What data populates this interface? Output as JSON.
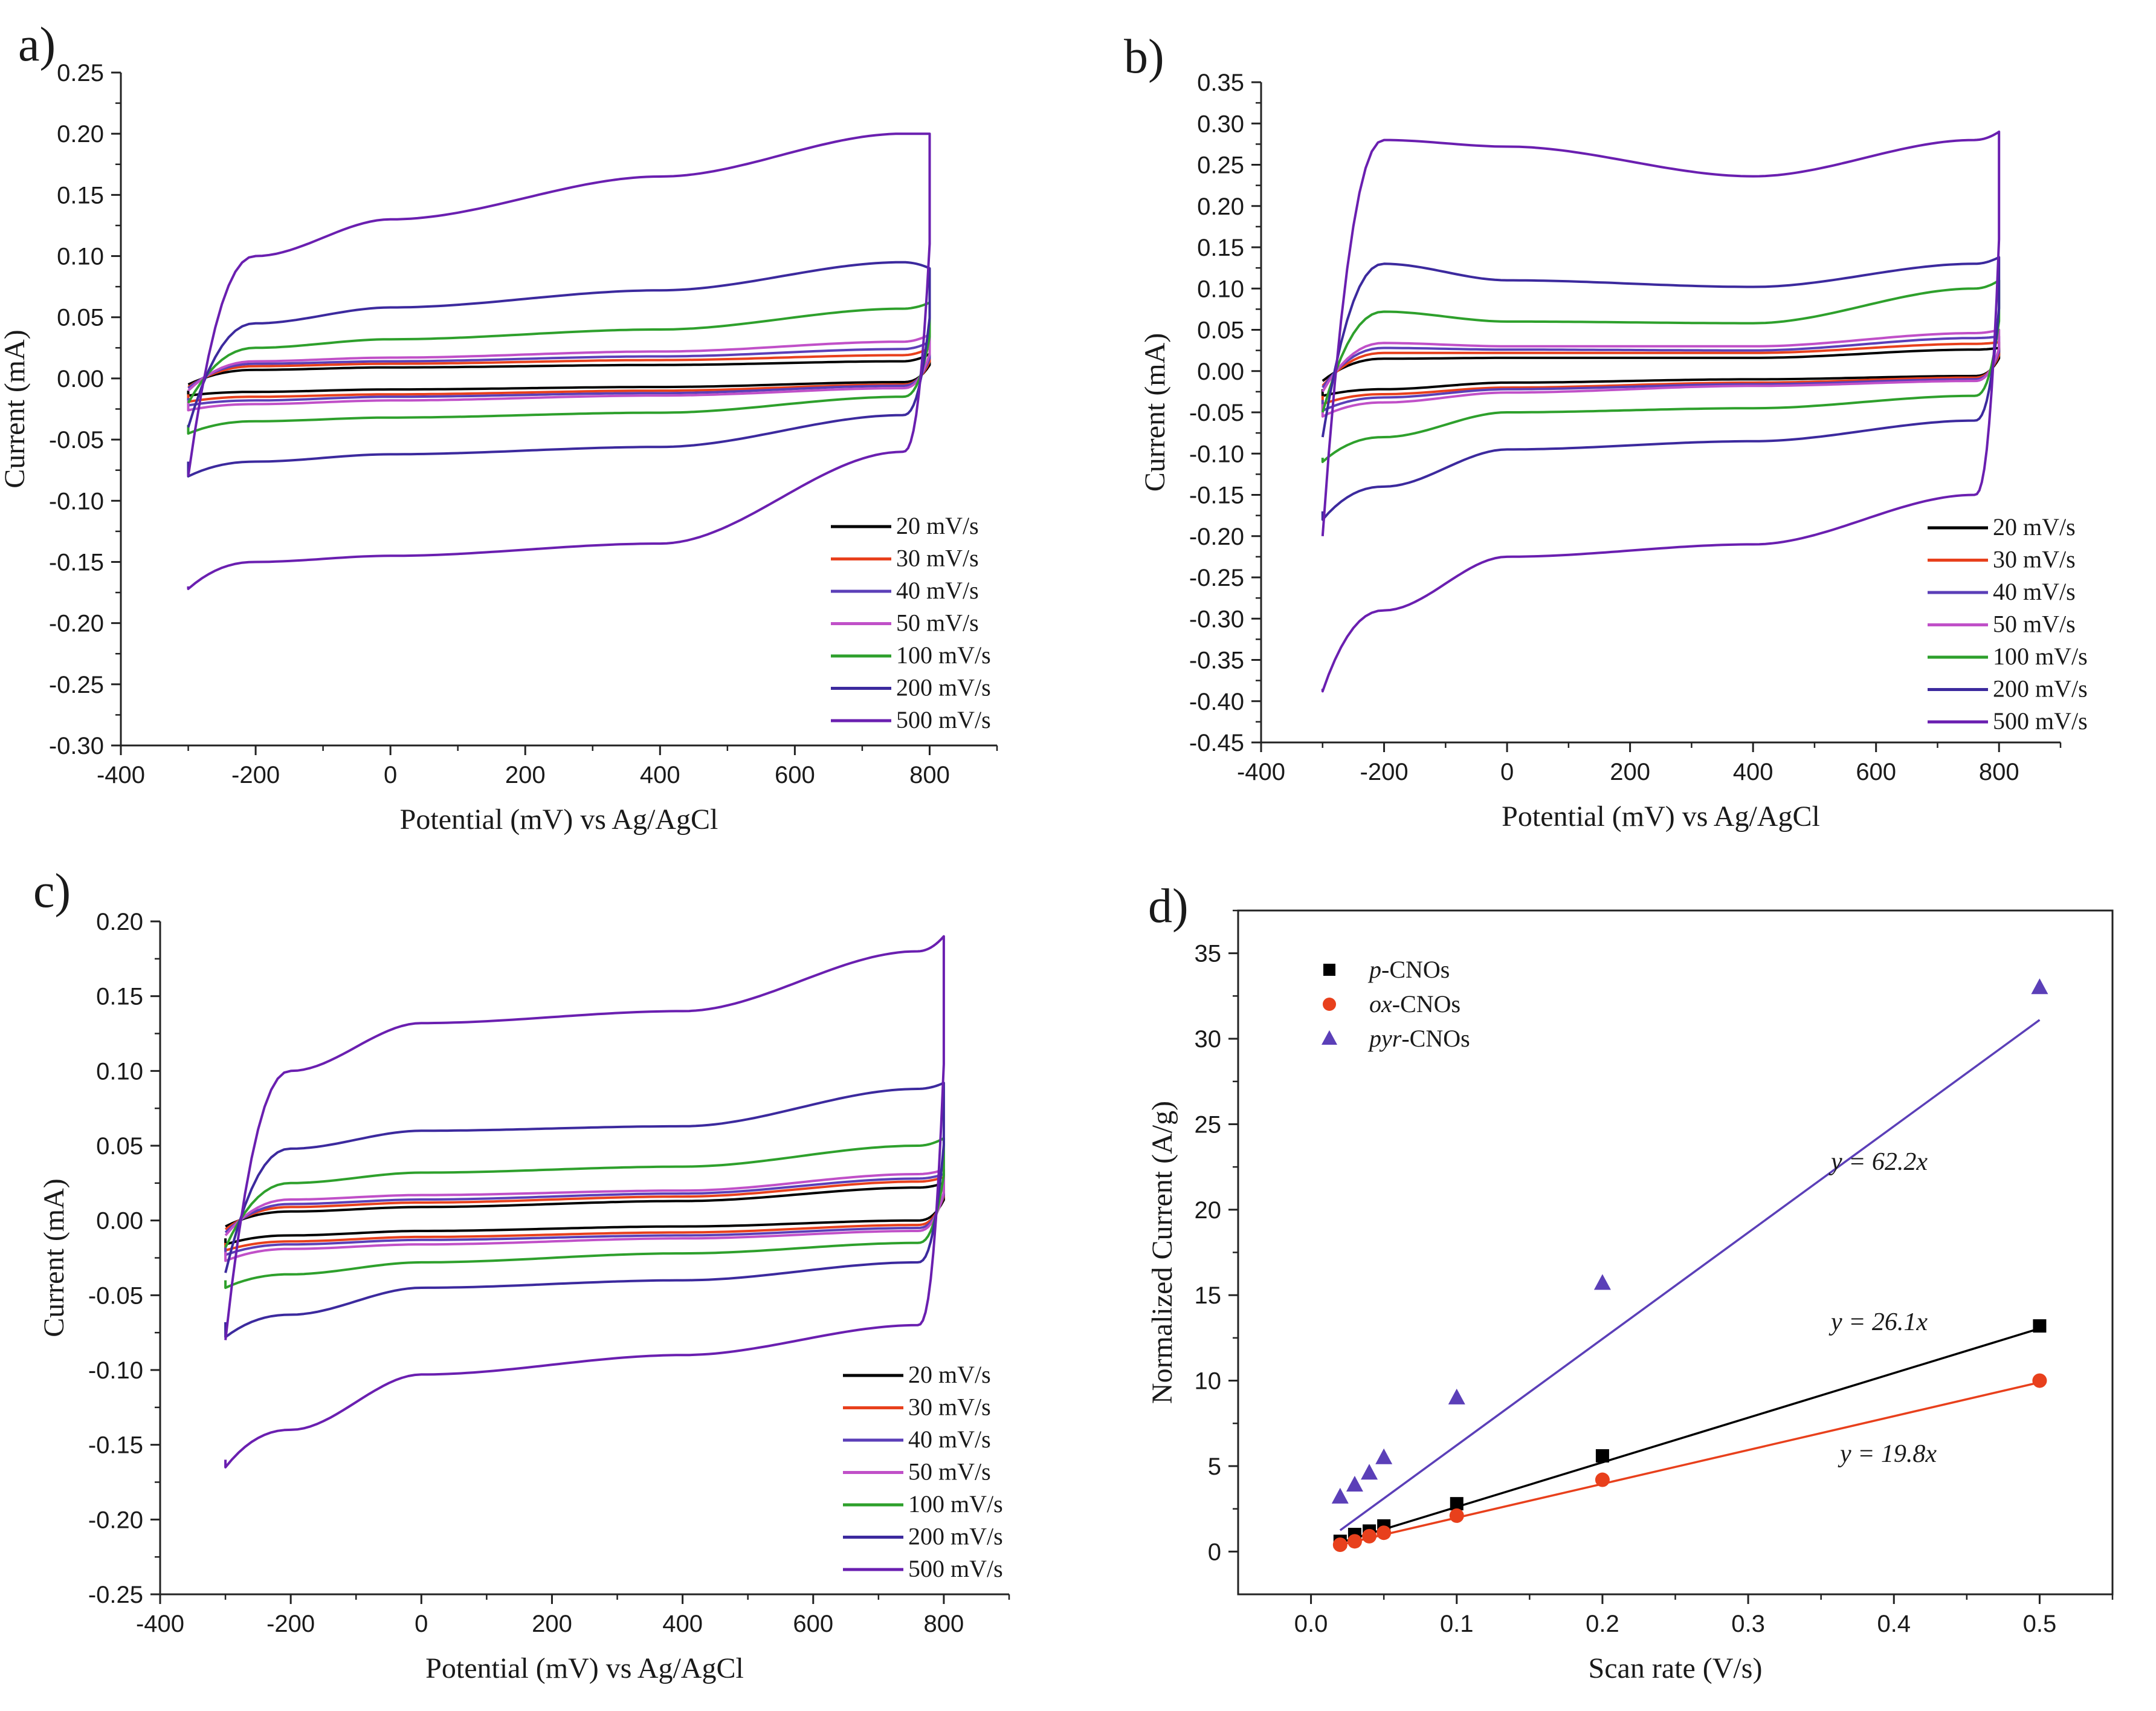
{
  "chart_data": [
    {
      "panel": "a)",
      "type": "line",
      "xlabel": "Potential (mV) vs Ag/AgCl",
      "ylabel": "Current (mA)",
      "xlim": [
        -400,
        900
      ],
      "ylim": [
        -0.3,
        0.25
      ],
      "xticks": [
        -400,
        -200,
        0,
        200,
        400,
        600,
        800
      ],
      "yticks": [
        -0.3,
        -0.25,
        -0.2,
        -0.15,
        -0.1,
        -0.05,
        0.0,
        0.05,
        0.1,
        0.15,
        0.2,
        0.25
      ],
      "legend_position": "bottom-right",
      "series": [
        {
          "name": "20 mV/s",
          "color": "#000000",
          "cv": {
            "t": [
              -0.005,
              0.007,
              0.009,
              0.011,
              0.014
            ],
            "b": [
              -0.014,
              -0.011,
              -0.009,
              -0.007,
              -0.003
            ],
            "s0": -0.01,
            "s1": 0.02
          }
        },
        {
          "name": "30 mV/s",
          "color": "#e8401c",
          "cv": {
            "t": [
              -0.007,
              0.01,
              0.012,
              0.015,
              0.019
            ],
            "b": [
              -0.019,
              -0.015,
              -0.013,
              -0.01,
              -0.005
            ],
            "s0": -0.013,
            "s1": 0.025
          }
        },
        {
          "name": "40 mV/s",
          "color": "#5b3fb8",
          "cv": {
            "t": [
              -0.008,
              0.012,
              0.014,
              0.018,
              0.024
            ],
            "b": [
              -0.022,
              -0.018,
              -0.015,
              -0.012,
              -0.006
            ],
            "s0": -0.016,
            "s1": 0.03
          }
        },
        {
          "name": "50 mV/s",
          "color": "#c050c8",
          "cv": {
            "t": [
              -0.01,
              0.014,
              0.017,
              0.022,
              0.03
            ],
            "b": [
              -0.026,
              -0.021,
              -0.018,
              -0.014,
              -0.008
            ],
            "s0": -0.018,
            "s1": 0.036
          }
        },
        {
          "name": "100 mV/s",
          "color": "#2ea02c",
          "cv": {
            "t": [
              -0.02,
              0.025,
              0.032,
              0.04,
              0.057
            ],
            "b": [
              -0.045,
              -0.035,
              -0.032,
              -0.028,
              -0.015
            ],
            "s0": -0.038,
            "s1": 0.062
          }
        },
        {
          "name": "200 mV/s",
          "color": "#3c2a9e",
          "cv": {
            "t": [
              -0.04,
              0.045,
              0.058,
              0.072,
              0.095
            ],
            "b": [
              -0.08,
              -0.068,
              -0.062,
              -0.056,
              -0.03
            ],
            "s0": -0.068,
            "s1": 0.09
          }
        },
        {
          "name": "500 mV/s",
          "color": "#6a1fb0",
          "cv": {
            "t": [
              -0.08,
              0.1,
              0.13,
              0.165,
              0.2
            ],
            "b": [
              -0.172,
              -0.15,
              -0.145,
              -0.135,
              -0.06
            ],
            "s0": -0.17,
            "s1": 0.2
          }
        }
      ]
    },
    {
      "panel": "b)",
      "type": "line",
      "xlabel": "Potential (mV) vs Ag/AgCl",
      "ylabel": "Current (mA)",
      "xlim": [
        -400,
        900
      ],
      "ylim": [
        -0.45,
        0.35
      ],
      "xticks": [
        -400,
        -200,
        0,
        200,
        400,
        600,
        800
      ],
      "yticks": [
        -0.45,
        -0.4,
        -0.35,
        -0.3,
        -0.25,
        -0.2,
        -0.15,
        -0.1,
        -0.05,
        0.0,
        0.05,
        0.1,
        0.15,
        0.2,
        0.25,
        0.3,
        0.35
      ],
      "legend_position": "bottom-right",
      "series": [
        {
          "name": "20 mV/s",
          "color": "#000000",
          "cv": {
            "t": [
              -0.012,
              0.015,
              0.016,
              0.016,
              0.026
            ],
            "b": [
              -0.03,
              -0.022,
              -0.014,
              -0.01,
              -0.006
            ],
            "s0": -0.022,
            "s1": 0.028
          }
        },
        {
          "name": "30 mV/s",
          "color": "#e8401c",
          "cv": {
            "t": [
              -0.018,
              0.022,
              0.022,
              0.022,
              0.033
            ],
            "b": [
              -0.04,
              -0.028,
              -0.02,
              -0.014,
              -0.008
            ],
            "s0": -0.03,
            "s1": 0.035
          }
        },
        {
          "name": "40 mV/s",
          "color": "#5b3fb8",
          "cv": {
            "t": [
              -0.02,
              0.028,
              0.026,
              0.025,
              0.04
            ],
            "b": [
              -0.048,
              -0.032,
              -0.022,
              -0.016,
              -0.01
            ],
            "s0": -0.035,
            "s1": 0.042
          }
        },
        {
          "name": "50 mV/s",
          "color": "#c050c8",
          "cv": {
            "t": [
              -0.025,
              0.034,
              0.03,
              0.03,
              0.046
            ],
            "b": [
              -0.055,
              -0.038,
              -0.026,
              -0.018,
              -0.012
            ],
            "s0": -0.04,
            "s1": 0.05
          }
        },
        {
          "name": "100 mV/s",
          "color": "#2ea02c",
          "cv": {
            "t": [
              -0.05,
              0.072,
              0.06,
              0.058,
              0.1
            ],
            "b": [
              -0.11,
              -0.08,
              -0.05,
              -0.045,
              -0.03
            ],
            "s0": -0.105,
            "s1": 0.11
          }
        },
        {
          "name": "200 mV/s",
          "color": "#3c2a9e",
          "cv": {
            "t": [
              -0.08,
              0.13,
              0.11,
              0.102,
              0.13
            ],
            "b": [
              -0.18,
              -0.14,
              -0.095,
              -0.085,
              -0.06
            ],
            "s0": -0.17,
            "s1": 0.138
          }
        },
        {
          "name": "500 mV/s",
          "color": "#6a1fb0",
          "cv": {
            "t": [
              -0.2,
              0.28,
              0.272,
              0.236,
              0.28
            ],
            "b": [
              -0.388,
              -0.29,
              -0.225,
              -0.21,
              -0.15
            ],
            "s0": -0.385,
            "s1": 0.29
          }
        }
      ]
    },
    {
      "panel": "c)",
      "type": "line",
      "xlabel": "Potential (mV) vs Ag/AgCl",
      "ylabel": "Current (mA)",
      "xlim": [
        -400,
        900
      ],
      "ylim": [
        -0.25,
        0.2
      ],
      "xticks": [
        -400,
        -200,
        0,
        200,
        400,
        600,
        800
      ],
      "yticks": [
        -0.25,
        -0.2,
        -0.15,
        -0.1,
        -0.05,
        0.0,
        0.05,
        0.1,
        0.15,
        0.2
      ],
      "legend_position": "bottom-right",
      "series": [
        {
          "name": "20 mV/s",
          "color": "#000000",
          "cv": {
            "t": [
              -0.004,
              0.006,
              0.009,
              0.013,
              0.022
            ],
            "b": [
              -0.016,
              -0.01,
              -0.007,
              -0.004,
              0.0
            ],
            "s0": -0.012,
            "s1": 0.025
          }
        },
        {
          "name": "30 mV/s",
          "color": "#e8401c",
          "cv": {
            "t": [
              -0.006,
              0.009,
              0.012,
              0.016,
              0.026
            ],
            "b": [
              -0.02,
              -0.014,
              -0.011,
              -0.008,
              -0.003
            ],
            "s0": -0.015,
            "s1": 0.029
          }
        },
        {
          "name": "40 mV/s",
          "color": "#5b3fb8",
          "cv": {
            "t": [
              -0.008,
              0.011,
              0.014,
              0.018,
              0.028
            ],
            "b": [
              -0.023,
              -0.016,
              -0.013,
              -0.01,
              -0.005
            ],
            "s0": -0.018,
            "s1": 0.031
          }
        },
        {
          "name": "50 mV/s",
          "color": "#c050c8",
          "cv": {
            "t": [
              -0.01,
              0.014,
              0.017,
              0.02,
              0.031
            ],
            "b": [
              -0.027,
              -0.019,
              -0.016,
              -0.012,
              -0.007
            ],
            "s0": -0.021,
            "s1": 0.034
          }
        },
        {
          "name": "100 mV/s",
          "color": "#2ea02c",
          "cv": {
            "t": [
              -0.018,
              0.025,
              0.032,
              0.036,
              0.05
            ],
            "b": [
              -0.045,
              -0.036,
              -0.028,
              -0.022,
              -0.015
            ],
            "s0": -0.04,
            "s1": 0.055
          }
        },
        {
          "name": "200 mV/s",
          "color": "#3c2a9e",
          "cv": {
            "t": [
              -0.035,
              0.048,
              0.06,
              0.063,
              0.088
            ],
            "b": [
              -0.078,
              -0.063,
              -0.045,
              -0.04,
              -0.028
            ],
            "s0": -0.068,
            "s1": 0.092
          }
        },
        {
          "name": "500 mV/s",
          "color": "#6a1fb0",
          "cv": {
            "t": [
              -0.08,
              0.1,
              0.132,
              0.14,
              0.18
            ],
            "b": [
              -0.165,
              -0.14,
              -0.103,
              -0.09,
              -0.07
            ],
            "s0": -0.16,
            "s1": 0.19
          }
        }
      ]
    },
    {
      "panel": "d)",
      "type": "scatter",
      "xlabel": "Scan rate (V/s)",
      "ylabel": "Normalized Current (A/g)",
      "xlim": [
        -0.05,
        0.55
      ],
      "ylim": [
        -2.5,
        37.5
      ],
      "xticks": [
        0.0,
        0.1,
        0.2,
        0.3,
        0.4,
        0.5
      ],
      "yticks": [
        0,
        5,
        10,
        15,
        20,
        25,
        30,
        35
      ],
      "legend_position": "top-left",
      "series": [
        {
          "name_prefix": "p",
          "name_suffix": "-CNOs",
          "marker": "square",
          "color": "#000000",
          "x": [
            0.02,
            0.03,
            0.04,
            0.05,
            0.1,
            0.2,
            0.5
          ],
          "y": [
            0.6,
            1.0,
            1.2,
            1.5,
            2.8,
            5.6,
            13.2
          ],
          "fit_label": "y = 26.1x",
          "slope": 26.1
        },
        {
          "name_prefix": "ox",
          "name_suffix": "-CNOs",
          "marker": "circle",
          "color": "#e8401c",
          "x": [
            0.02,
            0.03,
            0.04,
            0.05,
            0.1,
            0.2,
            0.5
          ],
          "y": [
            0.4,
            0.6,
            0.9,
            1.1,
            2.1,
            4.2,
            10.0
          ],
          "fit_label": "y = 19.8x",
          "slope": 19.8
        },
        {
          "name_prefix": "pyr",
          "name_suffix": "-CNOs",
          "marker": "triangle",
          "color": "#5b3fb8",
          "x": [
            0.02,
            0.03,
            0.04,
            0.05,
            0.1,
            0.2,
            0.5
          ],
          "y": [
            3.2,
            3.9,
            4.6,
            5.5,
            9.0,
            15.7,
            33.0
          ],
          "fit_label": "y = 62.2x",
          "slope": 62.2
        }
      ]
    }
  ]
}
